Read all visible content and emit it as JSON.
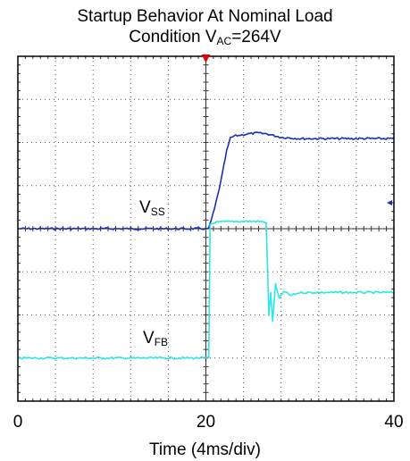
{
  "chart_data": {
    "type": "line",
    "title_line1": "Startup Behavior At Nominal Load",
    "title_line2_prefix": "Condition V",
    "title_line2_sub": "AC",
    "title_line2_suffix": "=264V",
    "xlabel": "Time (4ms/div)",
    "xlim": [
      0,
      40
    ],
    "x_tick_labels": [
      {
        "value": 0,
        "label": "0"
      },
      {
        "value": 20,
        "label": "20"
      },
      {
        "value": 40,
        "label": "40"
      }
    ],
    "ylim": [
      0,
      8
    ],
    "grid": true,
    "colors": {
      "vss": "#1a2fb0",
      "vfb": "#2ee6e6",
      "grid": "#555555",
      "trigger": "#e00000"
    },
    "series": [
      {
        "key": "vss",
        "label_main": "V",
        "label_sub": "SS",
        "points": [
          [
            0,
            4.0
          ],
          [
            20.3,
            4.0
          ],
          [
            20.9,
            4.45
          ],
          [
            21.6,
            5.1
          ],
          [
            22.2,
            5.8
          ],
          [
            22.6,
            6.1
          ],
          [
            23.0,
            6.15
          ],
          [
            24.5,
            6.2
          ],
          [
            25.5,
            6.22
          ],
          [
            26.5,
            6.2
          ],
          [
            28,
            6.12
          ],
          [
            30,
            6.09
          ],
          [
            32,
            6.09
          ],
          [
            34,
            6.09
          ],
          [
            36,
            6.09
          ],
          [
            38,
            6.09
          ],
          [
            40,
            6.09
          ]
        ]
      },
      {
        "key": "vfb",
        "label_main": "V",
        "label_sub": "FB",
        "points": [
          [
            0,
            1.0
          ],
          [
            20.0,
            1.0
          ],
          [
            20.3,
            1.0
          ],
          [
            20.45,
            4.1
          ],
          [
            21,
            4.15
          ],
          [
            23,
            4.17
          ],
          [
            25.5,
            4.17
          ],
          [
            26.4,
            4.15
          ],
          [
            26.5,
            3.5
          ],
          [
            26.7,
            2.0
          ],
          [
            26.9,
            2.5
          ],
          [
            27.1,
            1.85
          ],
          [
            27.4,
            2.7
          ],
          [
            27.8,
            2.38
          ],
          [
            28.3,
            2.55
          ],
          [
            29,
            2.45
          ],
          [
            30,
            2.52
          ],
          [
            34,
            2.52
          ],
          [
            38,
            2.52
          ],
          [
            40,
            2.52
          ]
        ]
      }
    ]
  }
}
